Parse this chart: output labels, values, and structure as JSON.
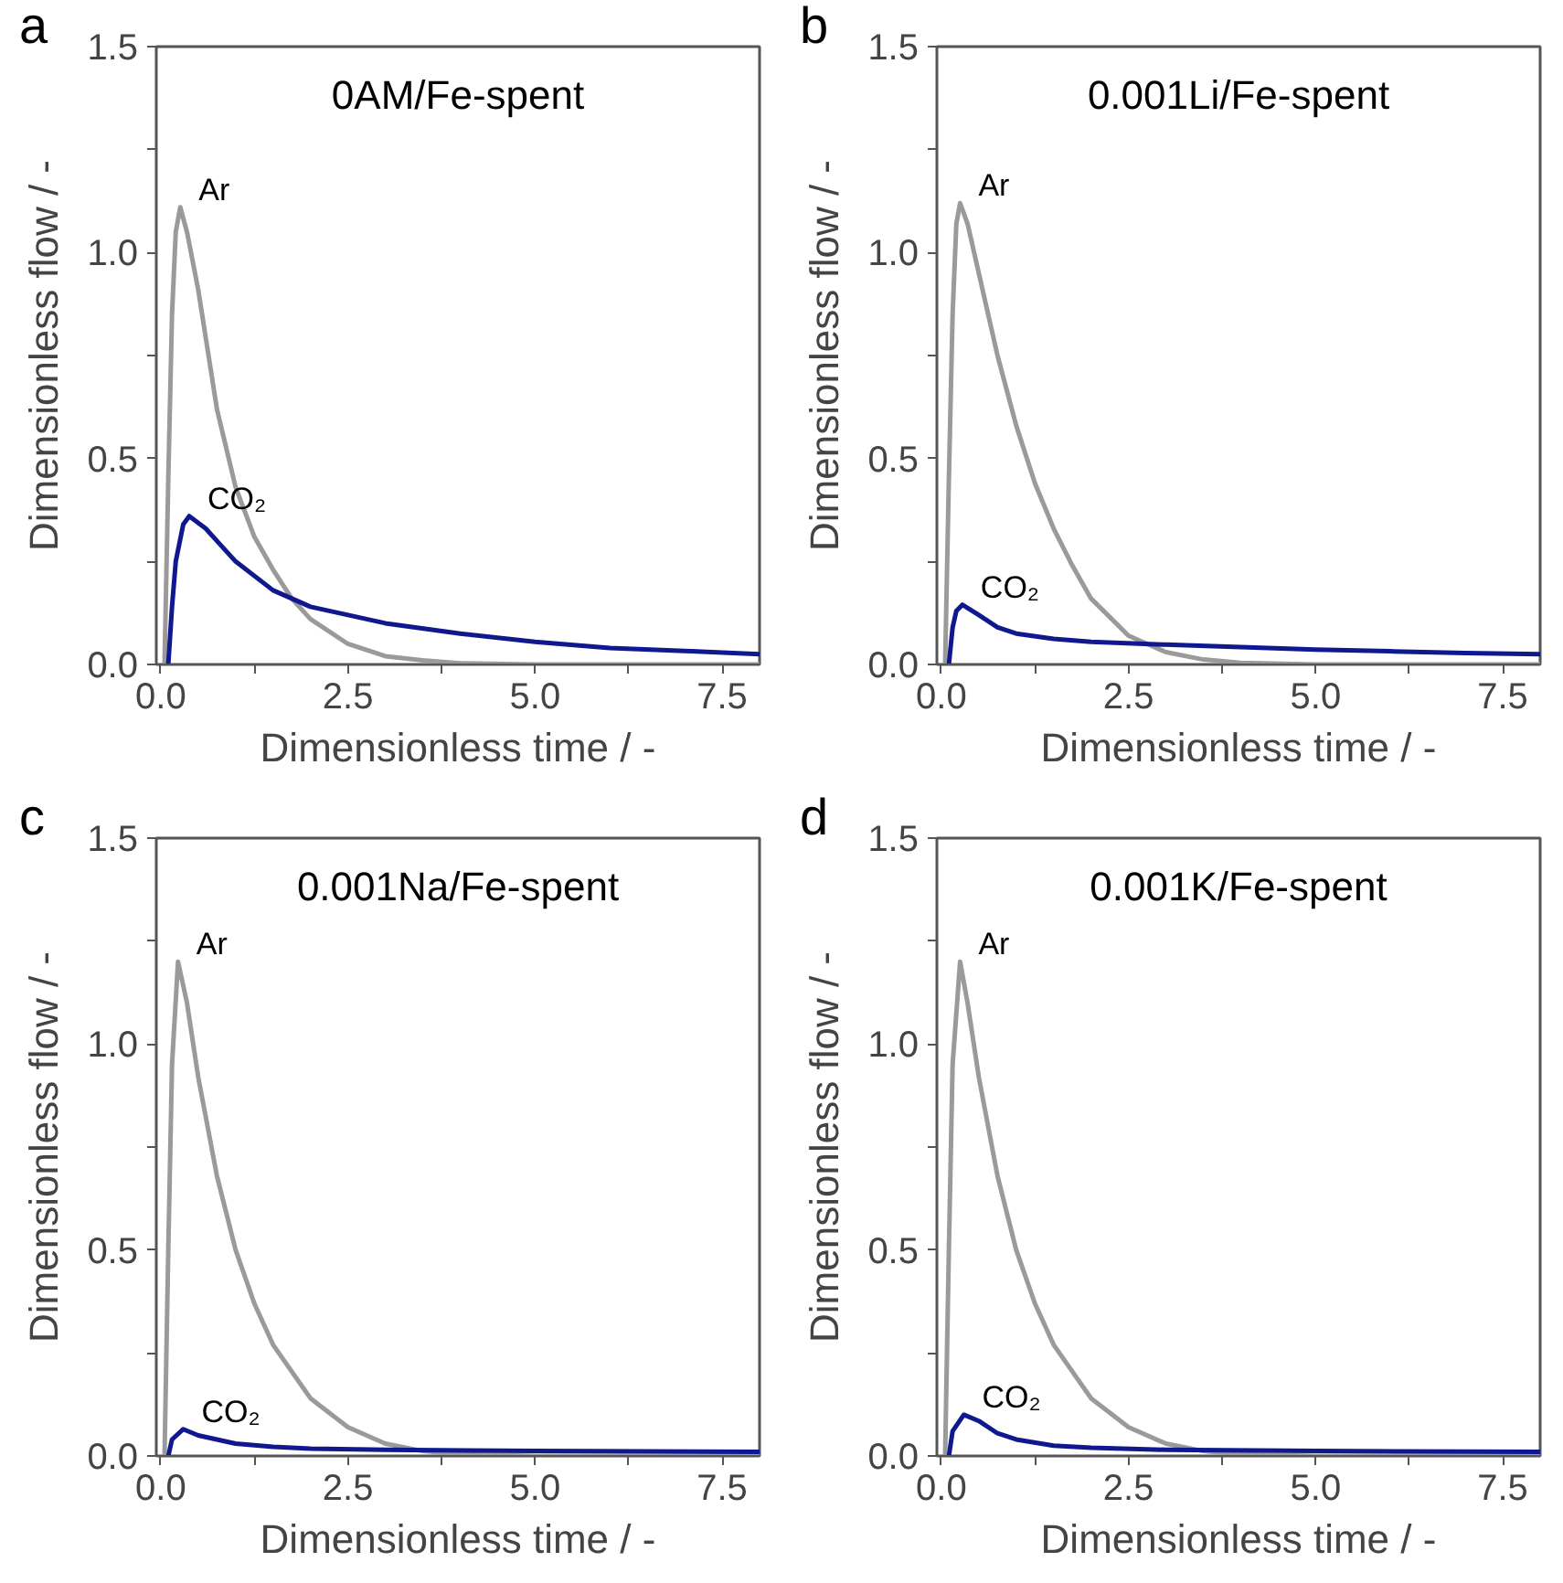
{
  "chart_data": [
    {
      "type": "line",
      "title": "0AM/Fe-spent",
      "xlabel": "Dimensionless time / -",
      "ylabel": "Dimensionless flow / -",
      "annotations": [
        "a"
      ],
      "xlim": [
        -0.06,
        8.0
      ],
      "ylim": [
        0,
        1.5
      ],
      "xticks": [
        {
          "value": 0,
          "label": "0.0"
        },
        {
          "value": 1.25,
          "label": null
        },
        {
          "value": 2.5,
          "label": "2.5"
        },
        {
          "value": 3.75,
          "label": null
        },
        {
          "value": 5,
          "label": "5.0"
        },
        {
          "value": 6.25,
          "label": null
        },
        {
          "value": 7.5,
          "label": "7.5"
        }
      ],
      "yticks": [
        {
          "value": 0,
          "label": "0.0"
        },
        {
          "value": 0.25,
          "label": null
        },
        {
          "value": 0.5,
          "label": "0.5"
        },
        {
          "value": 0.75,
          "label": null
        },
        {
          "value": 1.0,
          "label": "1.0"
        },
        {
          "value": 1.25,
          "label": null
        },
        {
          "value": 1.5,
          "label": "1.5"
        }
      ],
      "series": [
        {
          "name": "Ar",
          "color": "#9a9a9a",
          "x": [
            0.05,
            0.1,
            0.15,
            0.2,
            0.26,
            0.35,
            0.5,
            0.75,
            1.0,
            1.25,
            1.5,
            1.75,
            2.0,
            2.5,
            3.0,
            3.5,
            4.0,
            5.0,
            8.0
          ],
          "values": [
            0,
            0.45,
            0.85,
            1.05,
            1.11,
            1.05,
            0.91,
            0.62,
            0.43,
            0.31,
            0.23,
            0.16,
            0.11,
            0.05,
            0.02,
            0.01,
            0.003,
            0,
            0
          ]
        },
        {
          "name": "CO₂",
          "color": "#10188f",
          "x": [
            0.1,
            0.15,
            0.2,
            0.3,
            0.38,
            0.6,
            0.8,
            1.0,
            1.5,
            2.0,
            2.5,
            3.0,
            4.0,
            5.0,
            6.0,
            7.0,
            8.0
          ],
          "values": [
            0,
            0.14,
            0.25,
            0.34,
            0.36,
            0.33,
            0.29,
            0.25,
            0.18,
            0.14,
            0.12,
            0.1,
            0.075,
            0.055,
            0.04,
            0.033,
            0.025
          ]
        }
      ]
    },
    {
      "type": "line",
      "title": "0.001Li/Fe-spent",
      "xlabel": "Dimensionless time / -",
      "ylabel": "Dimensionless flow / -",
      "annotations": [
        "b"
      ],
      "xlim": [
        -0.06,
        8.0
      ],
      "ylim": [
        0,
        1.5
      ],
      "xticks": [
        {
          "value": 0,
          "label": "0.0"
        },
        {
          "value": 1.25,
          "label": null
        },
        {
          "value": 2.5,
          "label": "2.5"
        },
        {
          "value": 3.75,
          "label": null
        },
        {
          "value": 5,
          "label": "5.0"
        },
        {
          "value": 6.25,
          "label": null
        },
        {
          "value": 7.5,
          "label": "7.5"
        }
      ],
      "yticks": [
        {
          "value": 0,
          "label": "0.0"
        },
        {
          "value": 0.25,
          "label": null
        },
        {
          "value": 0.5,
          "label": "0.5"
        },
        {
          "value": 0.75,
          "label": null
        },
        {
          "value": 1.0,
          "label": "1.0"
        },
        {
          "value": 1.25,
          "label": null
        },
        {
          "value": 1.5,
          "label": "1.5"
        }
      ],
      "series": [
        {
          "name": "Ar",
          "color": "#9a9a9a",
          "x": [
            0.05,
            0.1,
            0.15,
            0.2,
            0.25,
            0.35,
            0.5,
            0.75,
            1.0,
            1.25,
            1.5,
            1.75,
            2.0,
            2.5,
            3.0,
            3.5,
            4.0,
            5.0,
            8.0
          ],
          "values": [
            0,
            0.45,
            0.85,
            1.07,
            1.12,
            1.07,
            0.95,
            0.75,
            0.58,
            0.44,
            0.33,
            0.24,
            0.16,
            0.07,
            0.03,
            0.012,
            0.004,
            0,
            0
          ]
        },
        {
          "name": "CO₂",
          "color": "#10188f",
          "x": [
            0.1,
            0.15,
            0.2,
            0.28,
            0.5,
            0.75,
            1.0,
            1.5,
            2.0,
            3.0,
            4.0,
            5.0,
            6.0,
            7.0,
            8.0
          ],
          "values": [
            0,
            0.09,
            0.13,
            0.145,
            0.12,
            0.09,
            0.075,
            0.062,
            0.055,
            0.048,
            0.042,
            0.036,
            0.032,
            0.028,
            0.025
          ]
        }
      ]
    },
    {
      "type": "line",
      "title": "0.001Na/Fe-spent",
      "xlabel": "Dimensionless time / -",
      "ylabel": "Dimensionless flow / -",
      "annotations": [
        "c"
      ],
      "xlim": [
        -0.06,
        8.0
      ],
      "ylim": [
        0,
        1.5
      ],
      "xticks": [
        {
          "value": 0,
          "label": "0.0"
        },
        {
          "value": 1.25,
          "label": null
        },
        {
          "value": 2.5,
          "label": "2.5"
        },
        {
          "value": 3.75,
          "label": null
        },
        {
          "value": 5,
          "label": "5.0"
        },
        {
          "value": 6.25,
          "label": null
        },
        {
          "value": 7.5,
          "label": "7.5"
        }
      ],
      "yticks": [
        {
          "value": 0,
          "label": "0.0"
        },
        {
          "value": 0.25,
          "label": null
        },
        {
          "value": 0.5,
          "label": "0.5"
        },
        {
          "value": 0.75,
          "label": null
        },
        {
          "value": 1.0,
          "label": "1.0"
        },
        {
          "value": 1.25,
          "label": null
        },
        {
          "value": 1.5,
          "label": "1.5"
        }
      ],
      "series": [
        {
          "name": "Ar",
          "color": "#9a9a9a",
          "x": [
            0.05,
            0.1,
            0.15,
            0.23,
            0.35,
            0.5,
            0.75,
            1.0,
            1.25,
            1.5,
            2.0,
            2.5,
            3.0,
            3.5,
            4.0,
            5.0,
            8.0
          ],
          "values": [
            0,
            0.5,
            0.95,
            1.2,
            1.1,
            0.92,
            0.68,
            0.5,
            0.37,
            0.27,
            0.14,
            0.07,
            0.03,
            0.012,
            0.004,
            0,
            0
          ]
        },
        {
          "name": "CO₂",
          "color": "#10188f",
          "x": [
            0.1,
            0.15,
            0.3,
            0.5,
            1.0,
            1.5,
            2.0,
            3.0,
            5.0,
            8.0
          ],
          "values": [
            0,
            0.04,
            0.065,
            0.05,
            0.03,
            0.022,
            0.018,
            0.015,
            0.012,
            0.01
          ]
        }
      ]
    },
    {
      "type": "line",
      "title": "0.001K/Fe-spent",
      "xlabel": "Dimensionless time / -",
      "ylabel": "Dimensionless flow / -",
      "annotations": [
        "d"
      ],
      "xlim": [
        -0.06,
        8.0
      ],
      "ylim": [
        0,
        1.5
      ],
      "xticks": [
        {
          "value": 0,
          "label": "0.0"
        },
        {
          "value": 1.25,
          "label": null
        },
        {
          "value": 2.5,
          "label": "2.5"
        },
        {
          "value": 3.75,
          "label": null
        },
        {
          "value": 5,
          "label": "5.0"
        },
        {
          "value": 6.25,
          "label": null
        },
        {
          "value": 7.5,
          "label": "7.5"
        }
      ],
      "yticks": [
        {
          "value": 0,
          "label": "0.0"
        },
        {
          "value": 0.25,
          "label": null
        },
        {
          "value": 0.5,
          "label": "0.5"
        },
        {
          "value": 0.75,
          "label": null
        },
        {
          "value": 1.0,
          "label": "1.0"
        },
        {
          "value": 1.25,
          "label": null
        },
        {
          "value": 1.5,
          "label": "1.5"
        }
      ],
      "series": [
        {
          "name": "Ar",
          "color": "#9a9a9a",
          "x": [
            0.05,
            0.1,
            0.15,
            0.25,
            0.35,
            0.5,
            0.75,
            1.0,
            1.25,
            1.5,
            2.0,
            2.5,
            3.0,
            3.5,
            4.0,
            5.0,
            8.0
          ],
          "values": [
            0,
            0.5,
            0.95,
            1.2,
            1.1,
            0.92,
            0.68,
            0.5,
            0.37,
            0.27,
            0.14,
            0.07,
            0.03,
            0.012,
            0.004,
            0,
            0
          ]
        },
        {
          "name": "CO₂",
          "color": "#10188f",
          "x": [
            0.1,
            0.15,
            0.3,
            0.5,
            0.75,
            1.0,
            1.5,
            2.0,
            3.0,
            5.0,
            8.0
          ],
          "values": [
            0,
            0.06,
            0.1,
            0.085,
            0.055,
            0.04,
            0.025,
            0.02,
            0.015,
            0.012,
            0.01
          ]
        }
      ]
    }
  ]
}
